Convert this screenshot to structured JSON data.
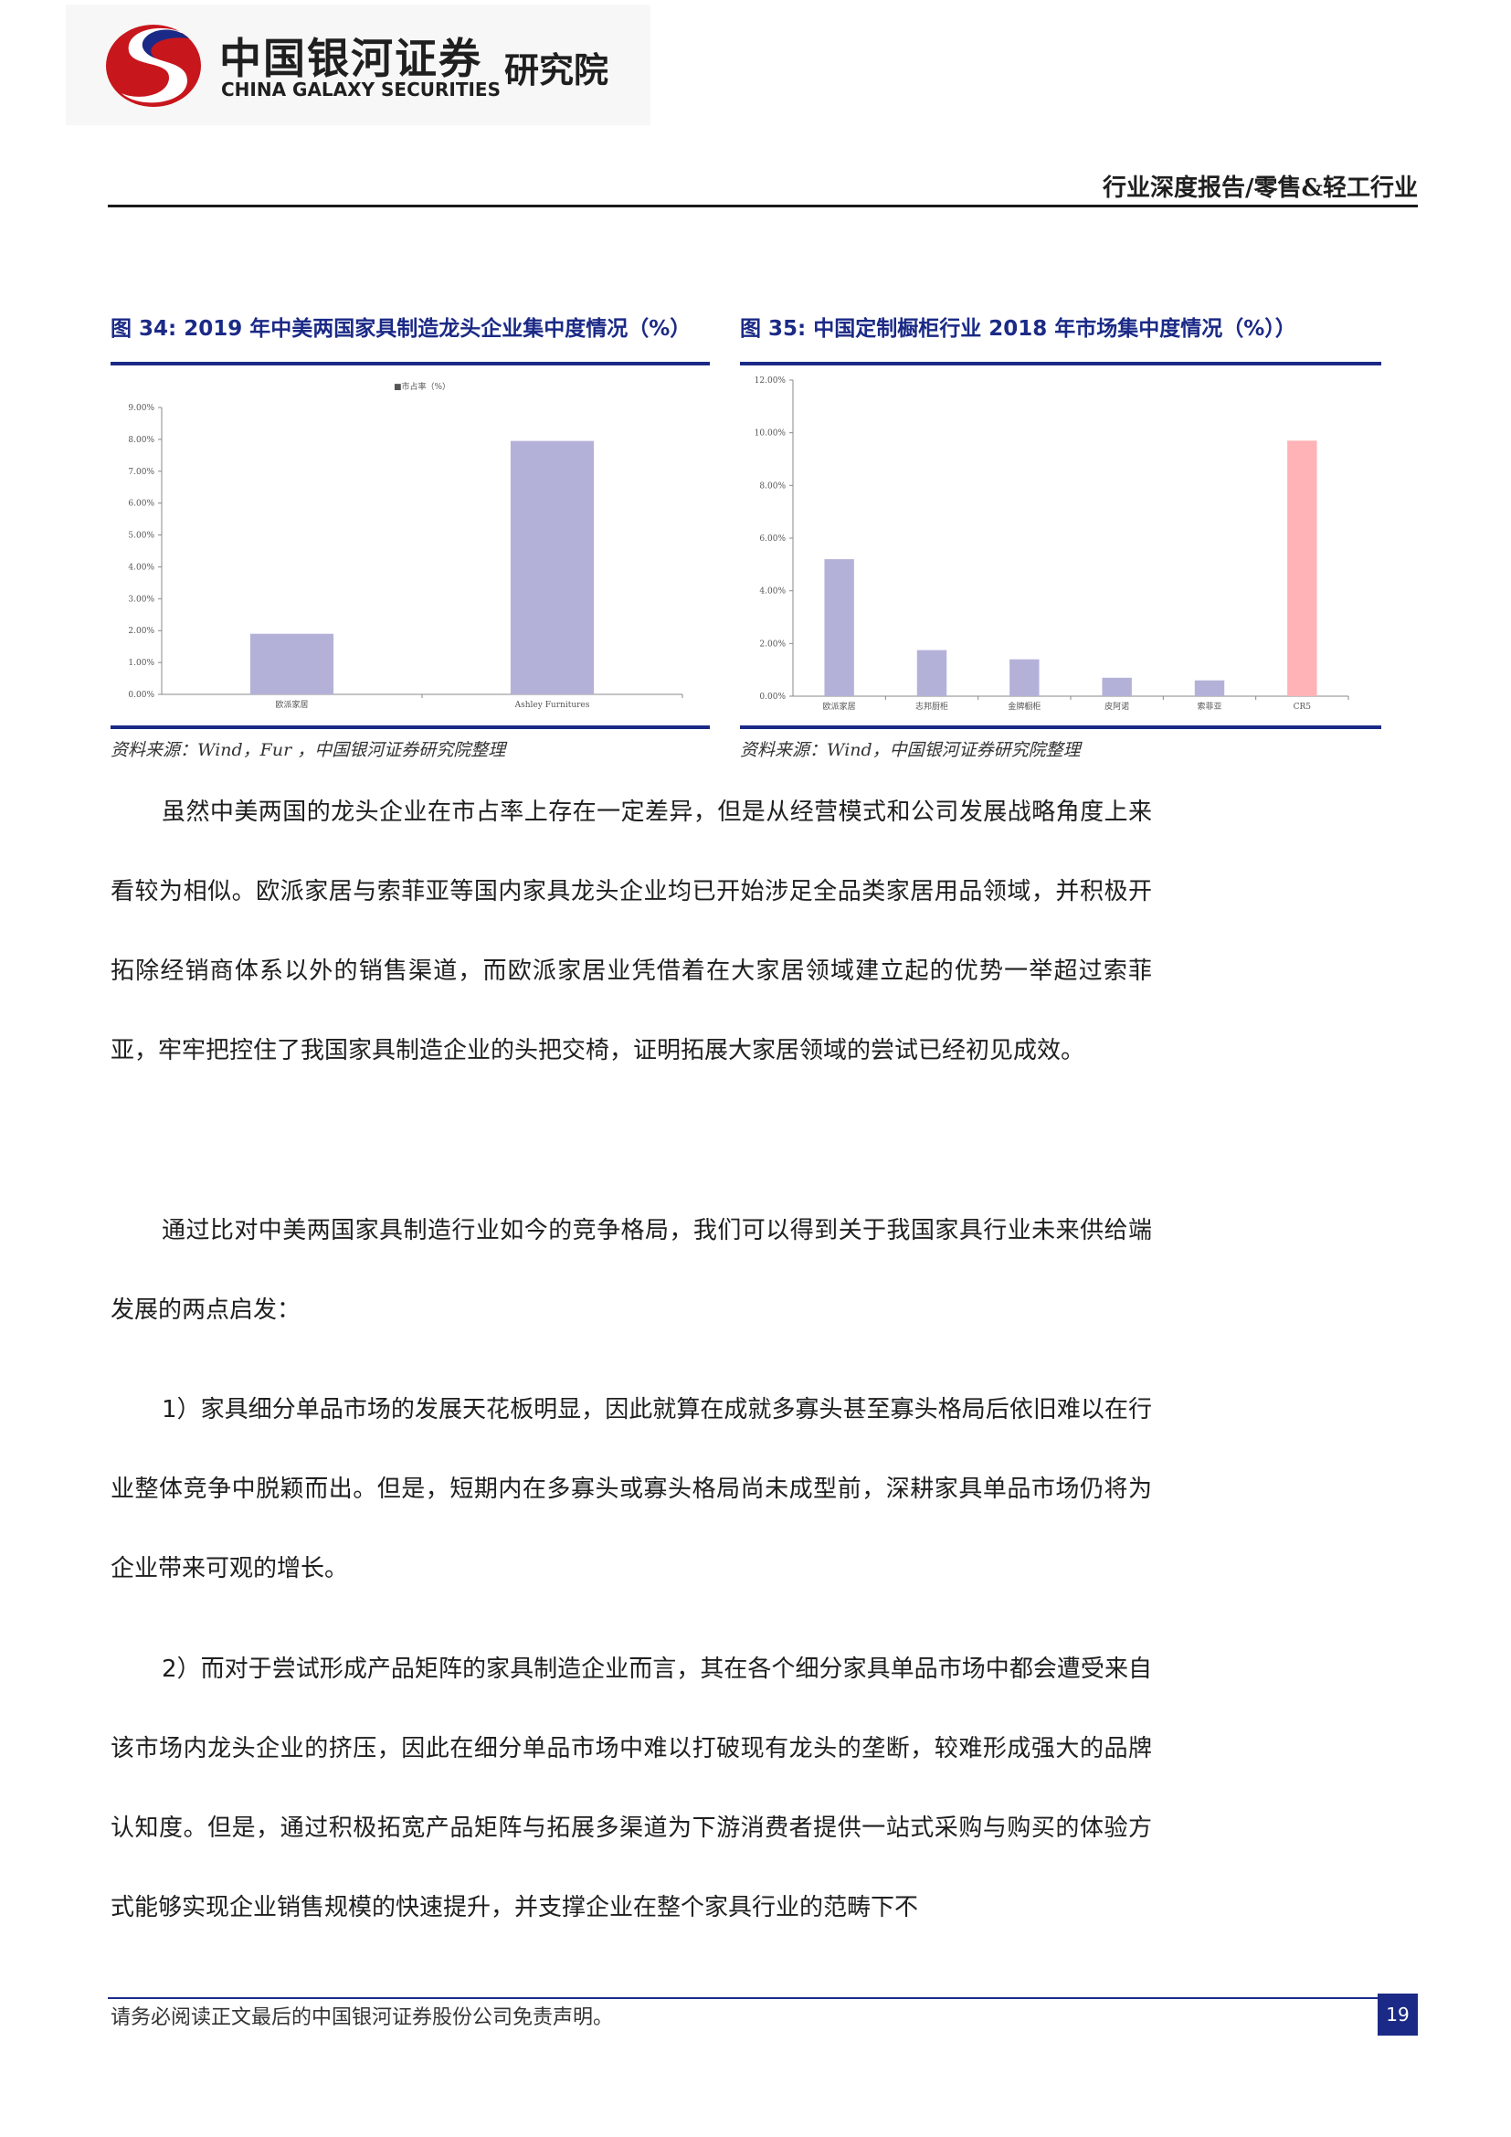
{
  "header": {
    "logo_cn": "中国银河证券",
    "logo_en": "CHINA GALAXY SECURITIES",
    "logo_institute": "研究院",
    "report_tag": "行业深度报告/零售&轻工行业"
  },
  "figures": [
    {
      "title": "图 34:  2019 年中美两国家具制造龙头企业集中度情况（%）",
      "source": "资料来源：Wind，Fur            ，中国银河证券研究院整理"
    },
    {
      "title": "图 35:  中国定制橱柜行业 2018 年市场集中度情况（%））",
      "source": "资料来源：Wind，中国银河证券研究院整理"
    }
  ],
  "chart_data": [
    {
      "type": "bar",
      "legend": "■市占率（%）",
      "categories": [
        "欧派家居",
        "Ashley Furnitures"
      ],
      "values": [
        1.9,
        7.95
      ],
      "ylim": [
        0,
        9
      ],
      "yticks": [
        "0.00%",
        "1.00%",
        "2.00%",
        "3.00%",
        "4.00%",
        "5.00%",
        "6.00%",
        "7.00%",
        "8.00%",
        "9.00%"
      ],
      "bar_color": "#b4b1d9"
    },
    {
      "type": "bar",
      "categories": [
        "欧派家居",
        "志邦厨柜",
        "金牌橱柜",
        "皮阿诺",
        "索菲亚",
        "CR5"
      ],
      "values": [
        5.2,
        1.75,
        1.4,
        0.7,
        0.6,
        9.7
      ],
      "ylim": [
        0,
        12
      ],
      "yticks": [
        "0.00%",
        "2.00%",
        "4.00%",
        "6.00%",
        "8.00%",
        "10.00%",
        "12.00%"
      ],
      "bar_colors": [
        "#b4b1d9",
        "#b4b1d9",
        "#b4b1d9",
        "#b4b1d9",
        "#b4b1d9",
        "#ffb3b6"
      ]
    }
  ],
  "body": {
    "paragraphs": [
      "虽然中美两国的龙头企业在市占率上存在一定差异，但是从经营模式和公司发展战略角度上来看较为相似。欧派家居与索菲亚等国内家具龙头企业均已开始涉足全品类家居用品领域，并积极开拓除经销商体系以外的销售渠道，而欧派家居业凭借着在大家居领域建立起的优势一举超过索菲亚，牢牢把控住了我国家具制造企业的头把交椅，证明拓展大家居领域的尝试已经初见成效。",
      "通过比对中美两国家具制造行业如今的竞争格局，我们可以得到关于我国家具行业未来供给端发展的两点启发：",
      "1）家具细分单品市场的发展天花板明显，因此就算在成就多寡头甚至寡头格局后依旧难以在行业整体竞争中脱颖而出。但是，短期内在多寡头或寡头格局尚未成型前，深耕家具单品市场仍将为企业带来可观的增长。",
      "2）而对于尝试形成产品矩阵的家具制造企业而言，其在各个细分家具单品市场中都会遭受来自该市场内龙头企业的挤压，因此在细分单品市场中难以打破现有龙头的垄断，较难形成强大的品牌认知度。但是，通过积极拓宽产品矩阵与拓展多渠道为下游消费者提供一站式采购与购买的体验方式能够实现企业销售规模的快速提升，并支撑企业在整个家具行业的范畴下不"
    ]
  },
  "footer": {
    "disclaimer": "请务必阅读正文最后的中国银河证券股份公司免责声明。",
    "page_number": "19"
  }
}
